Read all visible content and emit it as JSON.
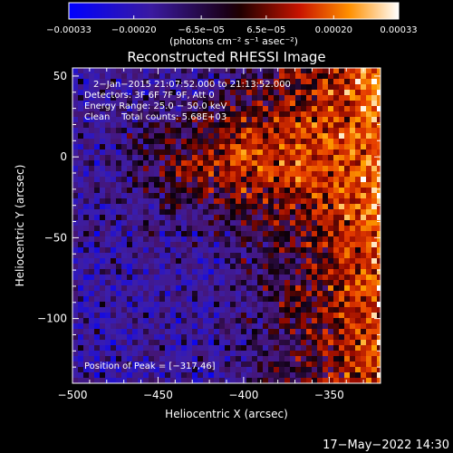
{
  "chart_data": {
    "type": "heatmap",
    "title": "Reconstructed RHESSI Image",
    "xlabel": "Heliocentric X (arcsec)",
    "ylabel": "Heliocentric Y (arcsec)",
    "xlim": [
      -500,
      -320
    ],
    "ylim": [
      -140,
      55
    ],
    "x_ticks": [
      -500,
      -450,
      -400,
      -350
    ],
    "x_tick_labels": [
      "−500",
      "−450",
      "−400",
      "−350"
    ],
    "y_ticks": [
      50,
      0,
      -50,
      -100
    ],
    "y_tick_labels": [
      "50",
      "0",
      "−50",
      "−100"
    ],
    "colorbar": {
      "range": [
        -0.00033,
        0.00033
      ],
      "ticks": [
        -0.00033,
        -0.0002,
        -6.5e-05,
        6.5e-05,
        0.0002,
        0.00033
      ],
      "tick_labels": [
        "−0.00033",
        "−0.00020",
        "−6.5e−05",
        "6.5e−05",
        "0.00020",
        "0.00033"
      ],
      "units": "(photons cm⁻² s⁻¹ asec⁻²)"
    },
    "annotations": [
      "2−Jan−2015 21:07:52.000 to 21:13:52.000",
      "Detectors: 3F 6F 7F 9F, Att 0",
      "Energy Range: 25.0 − 50.0 keV",
      "Clean    Total counts: 5.68E+03"
    ],
    "peak_label": "Position of Peak = [−317,46]",
    "peak_position": [
      -317,
      46
    ]
  },
  "footer": {
    "timestamp": "17−May−2022 14:30"
  },
  "colors": {
    "background": "#000000",
    "foreground": "#ffffff"
  }
}
